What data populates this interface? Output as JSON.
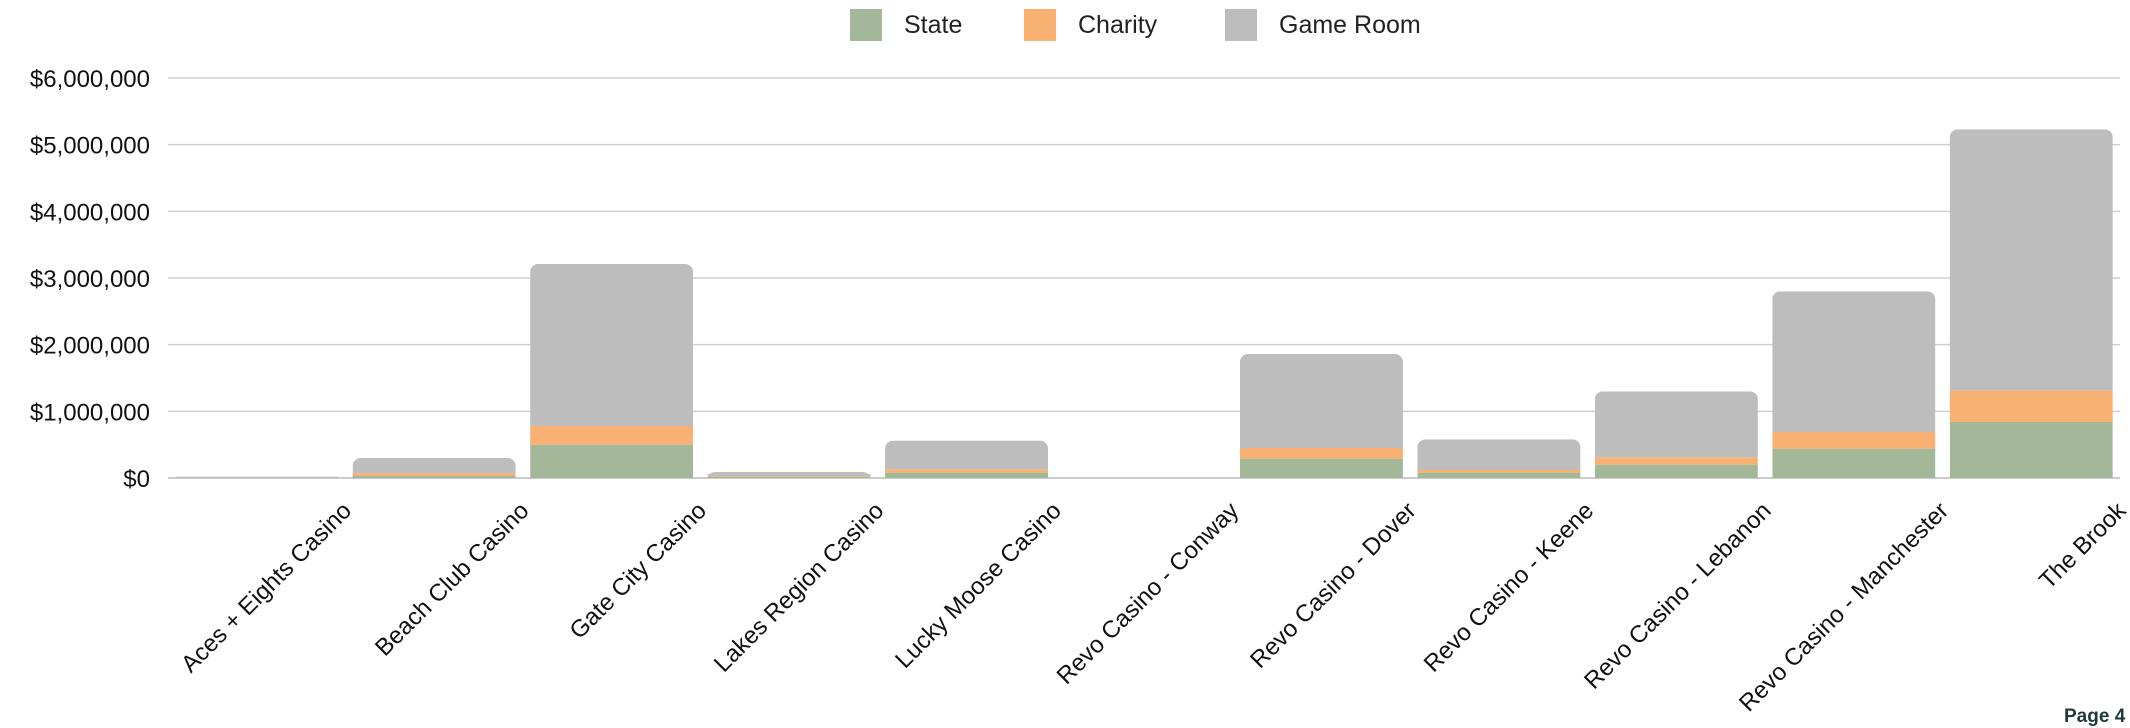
{
  "chart_data": {
    "type": "bar",
    "stacked": true,
    "categories": [
      "Aces + Eights Casino",
      "Beach Club Casino",
      "Gate City Casino",
      "Lakes Region Casino",
      "Lucky Moose Casino",
      "Revo Casino - Conway",
      "Revo Casino - Dover",
      "Revo Casino - Keene",
      "Revo Casino - Lebanon",
      "Revo Casino - Manchester",
      "The Brook"
    ],
    "series": [
      {
        "name": "State",
        "color": "#a3b899",
        "values": [
          0,
          30000,
          500000,
          20000,
          80000,
          0,
          290000,
          80000,
          200000,
          440000,
          840000
        ]
      },
      {
        "name": "Charity",
        "color": "#f8b172",
        "values": [
          0,
          40000,
          280000,
          10000,
          50000,
          0,
          160000,
          40000,
          110000,
          250000,
          470000
        ]
      },
      {
        "name": "Game Room",
        "color": "#bdbdbd",
        "values": [
          20000,
          230000,
          2430000,
          60000,
          430000,
          0,
          1410000,
          460000,
          990000,
          2110000,
          3920000
        ]
      }
    ],
    "y_ticks": [
      "$0",
      "$1,000,000",
      "$2,000,000",
      "$3,000,000",
      "$4,000,000",
      "$5,000,000",
      "$6,000,000"
    ],
    "ylim": [
      0,
      6000000
    ],
    "grid": true,
    "legend_position": "top-center"
  },
  "footer": {
    "page_label": "Page 4"
  }
}
